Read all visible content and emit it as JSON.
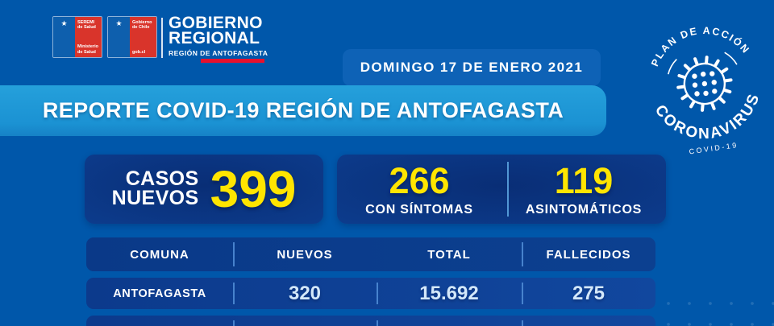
{
  "brand": {
    "logo_ministry": {
      "top": "SEREMI de Salud",
      "bottom": "Ministerio de Salud",
      "emblem": "★"
    },
    "logo_gob": {
      "top": "Gobierno de Chile",
      "bottom": "gob.cl",
      "emblem": "★"
    },
    "org_line1": "GOBIERNO",
    "org_line2": "REGIONAL",
    "org_line3": "REGIÓN DE ANTOFAGASTA"
  },
  "date_banner": "DOMINGO 17 DE ENERO 2021",
  "badge": {
    "top_arc": "PLAN DE ACCIÓN",
    "bottom_arc": "CORONAVIRUS",
    "sub": "COVID-19",
    "virus_icon": "virus-icon"
  },
  "title": "REPORTE COVID-19 REGIÓN DE ANTOFAGASTA",
  "stats": {
    "new_cases_label1": "CASOS",
    "new_cases_label2": "NUEVOS",
    "new_cases_value": "399",
    "symptomatic_value": "266",
    "symptomatic_label": "CON SÍNTOMAS",
    "asymptomatic_value": "119",
    "asymptomatic_label": "ASINTOMÁTICOS"
  },
  "table": {
    "headers": [
      "COMUNA",
      "NUEVOS",
      "TOTAL",
      "FALLECIDOS"
    ],
    "rows": [
      {
        "comuna": "ANTOFAGASTA",
        "nuevos": "320",
        "total": "15.692",
        "fallecidos": "275"
      }
    ]
  },
  "colors": {
    "background": "#0057AA",
    "banner_blue": "#1E9AD6",
    "panel_navy": "#0B3A8C",
    "accent_yellow": "#FFE500",
    "pale_number": "#D3E8FA",
    "chile_red": "#D9342B",
    "underline_red": "#E8112D"
  }
}
